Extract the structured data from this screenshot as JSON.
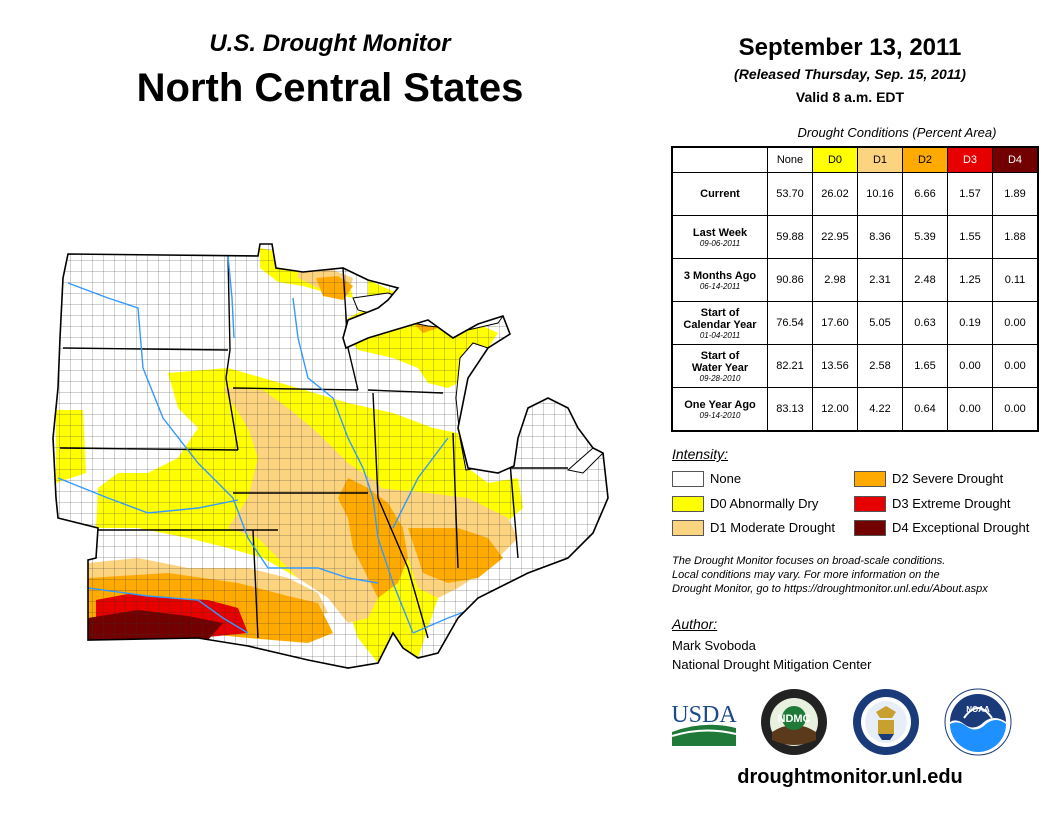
{
  "header": {
    "subtitle": "U.S. Drought Monitor",
    "region": "North Central States",
    "date": "September 13, 2011",
    "released": "(Released Thursday, Sep. 15, 2011)",
    "valid": "Valid 8 a.m. EDT"
  },
  "table": {
    "caption": "Drought Conditions (Percent Area)",
    "columns": [
      "None",
      "D0",
      "D1",
      "D2",
      "D3",
      "D4"
    ],
    "column_colors": [
      "#ffffff",
      "#ffff00",
      "#fcd37f",
      "#ffaa00",
      "#e60000",
      "#730000"
    ],
    "rows": [
      {
        "label": "Current",
        "label2": "",
        "date": "",
        "values": [
          "53.70",
          "26.02",
          "10.16",
          "6.66",
          "1.57",
          "1.89"
        ]
      },
      {
        "label": "Last Week",
        "label2": "",
        "date": "09-06-2011",
        "values": [
          "59.88",
          "22.95",
          "8.36",
          "5.39",
          "1.55",
          "1.88"
        ]
      },
      {
        "label": "3 Months Ago",
        "label2": "",
        "date": "06-14-2011",
        "values": [
          "90.86",
          "2.98",
          "2.31",
          "2.48",
          "1.25",
          "0.11"
        ]
      },
      {
        "label": "Start of",
        "label2": "Calendar Year",
        "date": "01-04-2011",
        "values": [
          "76.54",
          "17.60",
          "5.05",
          "0.63",
          "0.19",
          "0.00"
        ]
      },
      {
        "label": "Start of",
        "label2": "Water Year",
        "date": "09-28-2010",
        "values": [
          "82.21",
          "13.56",
          "2.58",
          "1.65",
          "0.00",
          "0.00"
        ]
      },
      {
        "label": "One Year Ago",
        "label2": "",
        "date": "09-14-2010",
        "values": [
          "83.13",
          "12.00",
          "4.22",
          "0.64",
          "0.00",
          "0.00"
        ]
      }
    ]
  },
  "legend": {
    "title": "Intensity:",
    "items": [
      {
        "label": "None",
        "color": "#ffffff"
      },
      {
        "label": "D0 Abnormally Dry",
        "color": "#ffff00"
      },
      {
        "label": "D1 Moderate Drought",
        "color": "#fcd37f"
      },
      {
        "label": "D2 Severe Drought",
        "color": "#ffaa00"
      },
      {
        "label": "D3 Extreme Drought",
        "color": "#e60000"
      },
      {
        "label": "D4 Exceptional Drought",
        "color": "#730000"
      }
    ]
  },
  "note": {
    "line1": "The Drought Monitor focuses on broad-scale conditions.",
    "line2": "Local conditions may vary. For more information on the",
    "line3": "Drought Monitor, go to https://droughtmonitor.unl.edu/About.aspx"
  },
  "author": {
    "label": "Author:",
    "name": "Mark Svoboda",
    "org": "National Drought Mitigation Center"
  },
  "logos": {
    "usda": "USDA",
    "ndmc": "NDMC",
    "noaa": "NOAA"
  },
  "website": "droughtmonitor.unl.edu",
  "map_colors": {
    "none": "#ffffff",
    "d0": "#ffff00",
    "d1": "#fcd37f",
    "d2": "#ffaa00",
    "d3": "#e60000",
    "d4": "#730000",
    "water": "#3399ff",
    "border": "#000000"
  }
}
